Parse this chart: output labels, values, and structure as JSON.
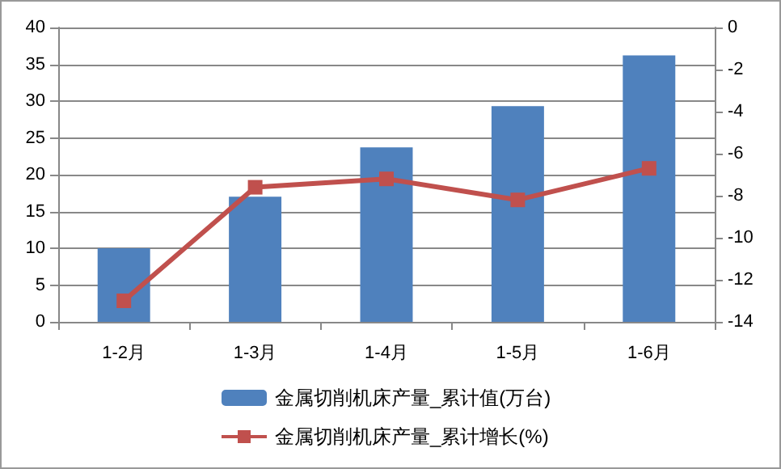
{
  "chart_data": {
    "type": "bar",
    "categories": [
      "1-2月",
      "1-3月",
      "1-4月",
      "1-5月",
      "1-6月"
    ],
    "series": [
      {
        "name": "金属切削机床产量_累计值(万台)",
        "color": "#4f81bd",
        "values": [
          10,
          17,
          23.7,
          29.3,
          36.2
        ]
      },
      {
        "name": "金属切削机床产量_累计增长(%)",
        "type": "line",
        "axis": "y2",
        "color": "#c0504d",
        "marker": "square",
        "values": [
          -13.0,
          -7.6,
          -7.2,
          -8.2,
          -6.7
        ]
      }
    ],
    "ylim": [
      0,
      40
    ],
    "yticks": [
      0,
      5,
      10,
      15,
      20,
      25,
      30,
      35,
      40
    ],
    "y2lim": [
      -14,
      0
    ],
    "y2ticks": [
      -14,
      -12,
      -10,
      -8,
      -6,
      -4,
      -2,
      0
    ],
    "grid": "y",
    "legend": "bottom"
  }
}
